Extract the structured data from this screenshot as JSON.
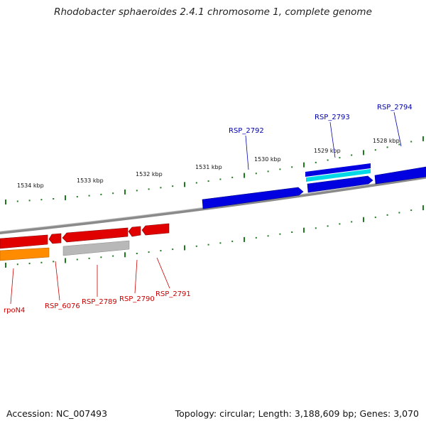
{
  "title": "Rhodobacter sphaeroides 2.4.1 chromosome 1, complete genome",
  "footer": {
    "accession": "Accession: NC_007493",
    "summary": "Topology: circular; Length: 3,188,609 bp; Genes: 3,070"
  },
  "colors": {
    "backbone": "#8a8a8a",
    "tick": "#1e7a1e",
    "forward_gene": "#0000e0",
    "forward_label": "#0000b0",
    "reverse_gene": "#e00000",
    "reverse_label": "#cc0000",
    "cyan_feature": "#00d8e8",
    "orange_feature": "#ff8c00",
    "gray_feature": "#b8b8b8"
  },
  "scale_labels": [
    "1534 kbp",
    "1533 kbp",
    "1532 kbp",
    "1531 kbp",
    "1530 kbp",
    "1529 kbp",
    "1528 kbp"
  ],
  "forward_genes": [
    {
      "id": "RSP_2792"
    },
    {
      "id": "RSP_2793"
    },
    {
      "id": "RSP_2794"
    }
  ],
  "reverse_genes": [
    {
      "id": "rpoN4"
    },
    {
      "id": "RSP_6076"
    },
    {
      "id": "RSP_2789"
    },
    {
      "id": "RSP_2790"
    },
    {
      "id": "RSP_2791"
    }
  ]
}
